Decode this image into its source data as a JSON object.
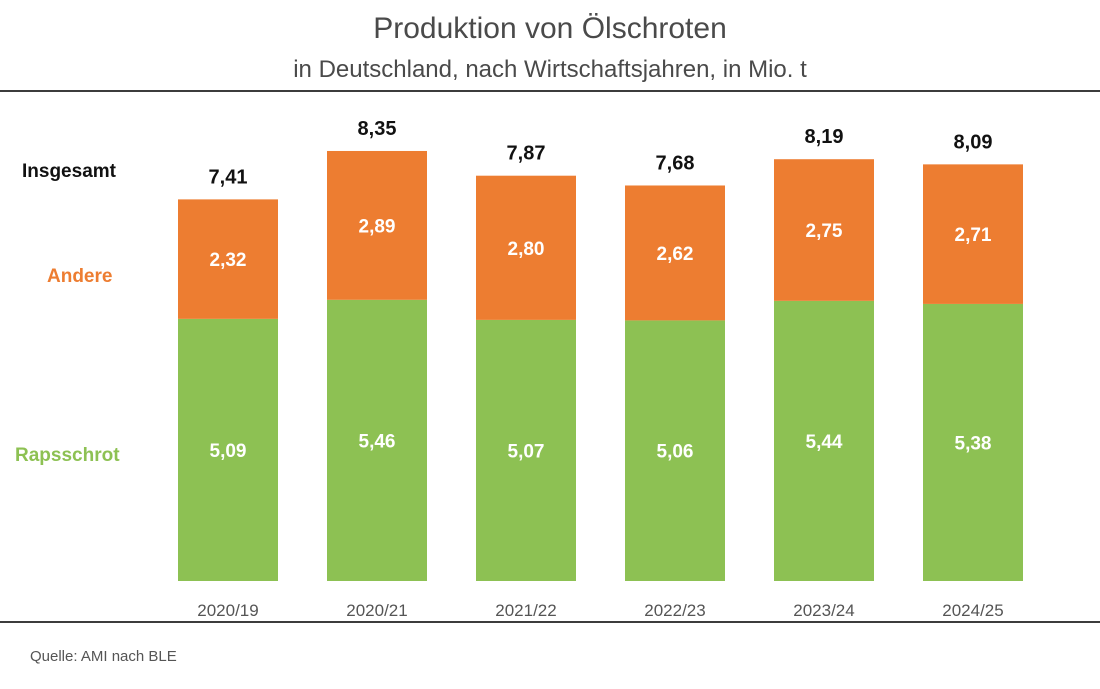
{
  "header": {
    "title": "Produktion von Ölschroten",
    "subtitle": "in Deutschland, nach Wirtschaftsjahren, in Mio. t"
  },
  "footer": {
    "source": "Quelle: AMI nach BLE"
  },
  "colors": {
    "raps": "#8dc153",
    "andere": "#ed7d31",
    "total_label": "#111111",
    "axis_label": "#555555"
  },
  "chart_data": {
    "type": "bar",
    "stacked": true,
    "title": "Produktion von Ölschroten",
    "subtitle": "in Deutschland, nach Wirtschaftsjahren, in Mio. t",
    "categories": [
      "2020/19",
      "2020/21",
      "2021/22",
      "2022/23",
      "2023/24",
      "2024/25"
    ],
    "series": [
      {
        "name": "Rapsschrot",
        "values": [
          "5,09",
          "5,46",
          "5,07",
          "5,06",
          "5,44",
          "5,38"
        ]
      },
      {
        "name": "Andere",
        "values": [
          "2,32",
          "2,89",
          "2,80",
          "2,62",
          "2,75",
          "2,71"
        ]
      }
    ],
    "totals_label": "Insgesamt",
    "totals": [
      "7,41",
      "8,35",
      "7,87",
      "7,68",
      "8,19",
      "8,09"
    ],
    "unit": "Mio. t",
    "ylim": [
      0,
      8.35
    ],
    "grid": false,
    "legend": "left"
  }
}
